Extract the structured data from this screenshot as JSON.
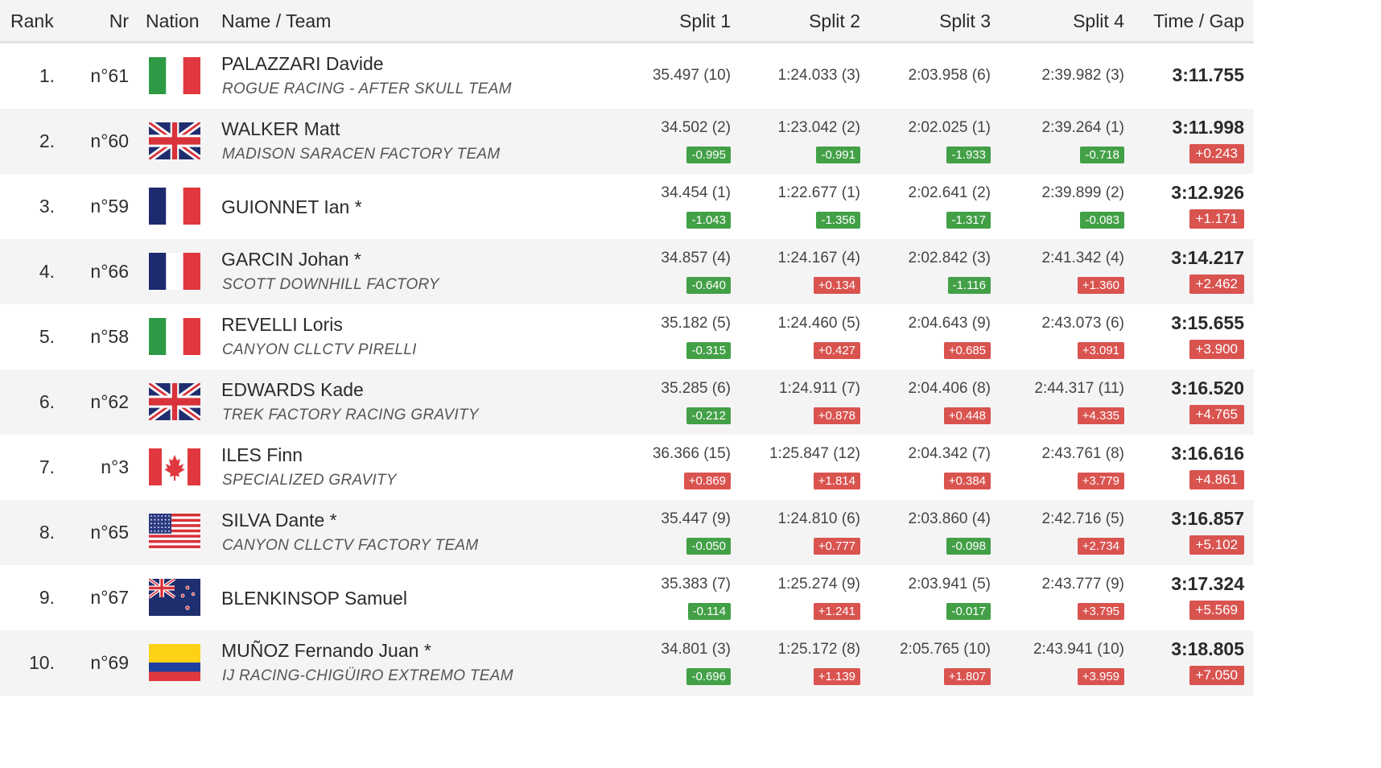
{
  "header": {
    "rank": "Rank",
    "nr": "Nr",
    "nation": "Nation",
    "name_team": "Name / Team",
    "split1": "Split 1",
    "split2": "Split 2",
    "split3": "Split 3",
    "split4": "Split 4",
    "time_gap": "Time / Gap"
  },
  "colors": {
    "faster": "#43a047",
    "slower": "#d9534f"
  },
  "rows": [
    {
      "rank": "1.",
      "nr": "n°61",
      "flag": "italy-flag-icon",
      "name": "PALAZZARI Davide",
      "team": "ROGUE RACING - AFTER SKULL TEAM",
      "splits": [
        {
          "time": "35.497 (10)",
          "diff": ""
        },
        {
          "time": "1:24.033 (3)",
          "diff": ""
        },
        {
          "time": "2:03.958 (6)",
          "diff": ""
        },
        {
          "time": "2:39.982 (3)",
          "diff": ""
        }
      ],
      "time": "3:11.755",
      "gap": ""
    },
    {
      "rank": "2.",
      "nr": "n°60",
      "flag": "uk-flag-icon",
      "name": "WALKER Matt",
      "team": "MADISON SARACEN FACTORY TEAM",
      "splits": [
        {
          "time": "34.502 (2)",
          "diff": "-0.995"
        },
        {
          "time": "1:23.042 (2)",
          "diff": "-0.991"
        },
        {
          "time": "2:02.025 (1)",
          "diff": "-1.933"
        },
        {
          "time": "2:39.264 (1)",
          "diff": "-0.718"
        }
      ],
      "time": "3:11.998",
      "gap": "+0.243"
    },
    {
      "rank": "3.",
      "nr": "n°59",
      "flag": "france-flag-icon",
      "name": "GUIONNET Ian *",
      "team": "",
      "splits": [
        {
          "time": "34.454 (1)",
          "diff": "-1.043"
        },
        {
          "time": "1:22.677 (1)",
          "diff": "-1.356"
        },
        {
          "time": "2:02.641 (2)",
          "diff": "-1.317"
        },
        {
          "time": "2:39.899 (2)",
          "diff": "-0.083"
        }
      ],
      "time": "3:12.926",
      "gap": "+1.171"
    },
    {
      "rank": "4.",
      "nr": "n°66",
      "flag": "france-flag-icon",
      "name": "GARCIN Johan *",
      "team": "SCOTT DOWNHILL FACTORY",
      "splits": [
        {
          "time": "34.857 (4)",
          "diff": "-0.640"
        },
        {
          "time": "1:24.167 (4)",
          "diff": "+0.134"
        },
        {
          "time": "2:02.842 (3)",
          "diff": "-1.116"
        },
        {
          "time": "2:41.342 (4)",
          "diff": "+1.360"
        }
      ],
      "time": "3:14.217",
      "gap": "+2.462"
    },
    {
      "rank": "5.",
      "nr": "n°58",
      "flag": "italy-flag-icon",
      "name": "REVELLI Loris",
      "team": "CANYON CLLCTV PIRELLI",
      "splits": [
        {
          "time": "35.182 (5)",
          "diff": "-0.315"
        },
        {
          "time": "1:24.460 (5)",
          "diff": "+0.427"
        },
        {
          "time": "2:04.643 (9)",
          "diff": "+0.685"
        },
        {
          "time": "2:43.073 (6)",
          "diff": "+3.091"
        }
      ],
      "time": "3:15.655",
      "gap": "+3.900"
    },
    {
      "rank": "6.",
      "nr": "n°62",
      "flag": "uk-flag-icon",
      "name": "EDWARDS Kade",
      "team": "TREK FACTORY RACING GRAVITY",
      "splits": [
        {
          "time": "35.285 (6)",
          "diff": "-0.212"
        },
        {
          "time": "1:24.911 (7)",
          "diff": "+0.878"
        },
        {
          "time": "2:04.406 (8)",
          "diff": "+0.448"
        },
        {
          "time": "2:44.317 (11)",
          "diff": "+4.335"
        }
      ],
      "time": "3:16.520",
      "gap": "+4.765"
    },
    {
      "rank": "7.",
      "nr": "n°3",
      "flag": "canada-flag-icon",
      "name": "ILES Finn",
      "team": "SPECIALIZED GRAVITY",
      "splits": [
        {
          "time": "36.366 (15)",
          "diff": "+0.869"
        },
        {
          "time": "1:25.847 (12)",
          "diff": "+1.814"
        },
        {
          "time": "2:04.342 (7)",
          "diff": "+0.384"
        },
        {
          "time": "2:43.761 (8)",
          "diff": "+3.779"
        }
      ],
      "time": "3:16.616",
      "gap": "+4.861"
    },
    {
      "rank": "8.",
      "nr": "n°65",
      "flag": "usa-flag-icon",
      "name": "SILVA Dante *",
      "team": "CANYON CLLCTV FACTORY TEAM",
      "splits": [
        {
          "time": "35.447 (9)",
          "diff": "-0.050"
        },
        {
          "time": "1:24.810 (6)",
          "diff": "+0.777"
        },
        {
          "time": "2:03.860 (4)",
          "diff": "-0.098"
        },
        {
          "time": "2:42.716 (5)",
          "diff": "+2.734"
        }
      ],
      "time": "3:16.857",
      "gap": "+5.102"
    },
    {
      "rank": "9.",
      "nr": "n°67",
      "flag": "new-zealand-flag-icon",
      "name": "BLENKINSOP Samuel",
      "team": "",
      "splits": [
        {
          "time": "35.383 (7)",
          "diff": "-0.114"
        },
        {
          "time": "1:25.274 (9)",
          "diff": "+1.241"
        },
        {
          "time": "2:03.941 (5)",
          "diff": "-0.017"
        },
        {
          "time": "2:43.777 (9)",
          "diff": "+3.795"
        }
      ],
      "time": "3:17.324",
      "gap": "+5.569"
    },
    {
      "rank": "10.",
      "nr": "n°69",
      "flag": "colombia-flag-icon",
      "name": "MUÑOZ Fernando Juan *",
      "team": "IJ RACING-CHIGÜIRO EXTREMO TEAM",
      "splits": [
        {
          "time": "34.801 (3)",
          "diff": "-0.696"
        },
        {
          "time": "1:25.172 (8)",
          "diff": "+1.139"
        },
        {
          "time": "2:05.765 (10)",
          "diff": "+1.807"
        },
        {
          "time": "2:43.941 (10)",
          "diff": "+3.959"
        }
      ],
      "time": "3:18.805",
      "gap": "+7.050"
    }
  ]
}
